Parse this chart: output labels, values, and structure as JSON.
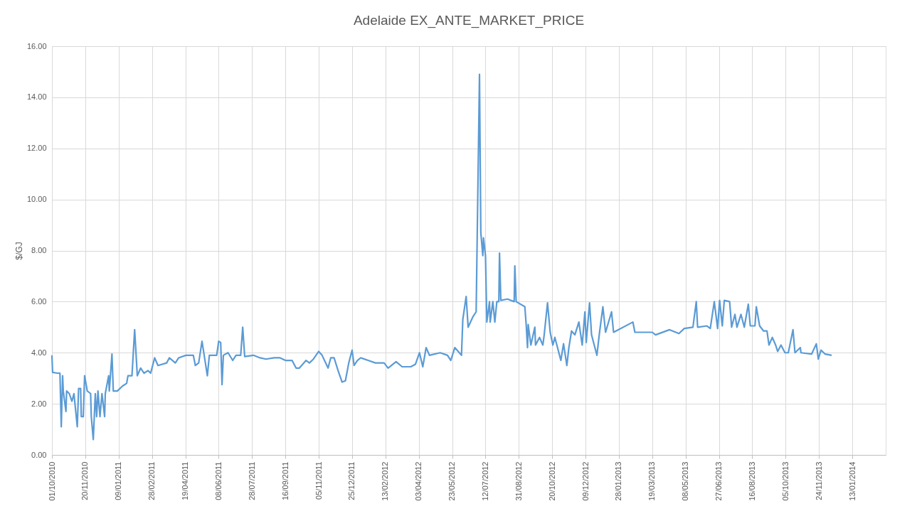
{
  "chart_data": {
    "type": "line",
    "title": "Adelaide EX_ANTE_MARKET_PRICE",
    "ylabel": "$/GJ",
    "x": [
      "2010-10-01",
      "2010-10-02",
      "2010-10-09",
      "2010-10-13",
      "2010-10-15",
      "2010-10-17",
      "2010-10-18",
      "2010-10-22",
      "2010-10-23",
      "2010-10-27",
      "2010-10-31",
      "2010-11-03",
      "2010-11-08",
      "2010-11-10",
      "2010-11-13",
      "2010-11-14",
      "2010-11-17",
      "2010-11-19",
      "2010-11-23",
      "2010-11-28",
      "2010-11-29",
      "2010-12-02",
      "2010-12-05",
      "2010-12-07",
      "2010-12-09",
      "2010-12-12",
      "2010-12-15",
      "2010-12-19",
      "2010-12-20",
      "2010-12-25",
      "2010-12-26",
      "2010-12-30",
      "2011-01-01",
      "2011-01-07",
      "2011-01-15",
      "2011-01-21",
      "2011-01-23",
      "2011-01-29",
      "2011-02-02",
      "2011-02-06",
      "2011-02-11",
      "2011-02-16",
      "2011-02-22",
      "2011-02-26",
      "2011-03-04",
      "2011-03-09",
      "2011-03-22",
      "2011-03-26",
      "2011-04-04",
      "2011-04-09",
      "2011-04-20",
      "2011-05-01",
      "2011-05-04",
      "2011-05-09",
      "2011-05-14",
      "2011-05-22",
      "2011-05-25",
      "2011-06-05",
      "2011-06-08",
      "2011-06-11",
      "2011-06-13",
      "2011-06-15",
      "2011-06-22",
      "2011-06-29",
      "2011-07-04",
      "2011-07-11",
      "2011-07-14",
      "2011-07-17",
      "2011-07-30",
      "2011-08-09",
      "2011-08-18",
      "2011-08-30",
      "2011-09-08",
      "2011-09-16",
      "2011-09-26",
      "2011-10-02",
      "2011-10-07",
      "2011-10-17",
      "2011-10-22",
      "2011-10-28",
      "2011-11-05",
      "2011-11-10",
      "2011-11-19",
      "2011-11-23",
      "2011-11-28",
      "2011-12-04",
      "2011-12-10",
      "2011-12-15",
      "2011-12-20",
      "2011-12-25",
      "2011-12-28",
      "2012-01-02",
      "2012-01-07",
      "2012-01-18",
      "2012-01-29",
      "2012-02-11",
      "2012-02-17",
      "2012-02-29",
      "2012-03-09",
      "2012-03-22",
      "2012-03-29",
      "2012-04-04",
      "2012-04-09",
      "2012-04-14",
      "2012-04-19",
      "2012-05-05",
      "2012-05-16",
      "2012-05-21",
      "2012-05-27",
      "2012-06-06",
      "2012-06-08",
      "2012-06-13",
      "2012-06-16",
      "2012-06-23",
      "2012-06-28",
      "2012-07-03",
      "2012-07-05",
      "2012-07-08",
      "2012-07-09",
      "2012-07-12",
      "2012-07-14",
      "2012-07-18",
      "2012-07-19",
      "2012-07-23",
      "2012-07-26",
      "2012-07-29",
      "2012-08-01",
      "2012-08-02",
      "2012-08-04",
      "2012-08-14",
      "2012-08-24",
      "2012-08-25",
      "2012-08-27",
      "2012-09-09",
      "2012-09-11",
      "2012-09-13",
      "2012-09-14",
      "2012-09-18",
      "2012-09-24",
      "2012-09-25",
      "2012-10-01",
      "2012-10-06",
      "2012-10-08",
      "2012-10-13",
      "2012-10-17",
      "2012-10-21",
      "2012-10-24",
      "2012-10-30",
      "2012-11-02",
      "2012-11-06",
      "2012-11-11",
      "2012-11-14",
      "2012-11-18",
      "2012-11-23",
      "2012-11-29",
      "2012-12-04",
      "2012-12-08",
      "2012-12-10",
      "2012-12-15",
      "2012-12-18",
      "2012-12-26",
      "2012-12-30",
      "2013-01-04",
      "2013-01-08",
      "2013-01-17",
      "2013-01-20",
      "2013-02-18",
      "2013-02-21",
      "2013-03-19",
      "2013-03-24",
      "2013-04-14",
      "2013-04-28",
      "2013-05-06",
      "2013-05-19",
      "2013-05-24",
      "2013-05-26",
      "2013-06-09",
      "2013-06-14",
      "2013-06-20",
      "2013-06-25",
      "2013-06-28",
      "2013-07-02",
      "2013-07-05",
      "2013-07-13",
      "2013-07-16",
      "2013-07-21",
      "2013-07-24",
      "2013-07-30",
      "2013-08-04",
      "2013-08-10",
      "2013-08-13",
      "2013-08-20",
      "2013-08-22",
      "2013-08-27",
      "2013-09-02",
      "2013-09-07",
      "2013-09-10",
      "2013-09-15",
      "2013-09-20",
      "2013-09-23",
      "2013-09-28",
      "2013-10-04",
      "2013-10-09",
      "2013-10-16",
      "2013-10-19",
      "2013-10-27",
      "2013-10-28",
      "2013-11-13",
      "2013-11-20",
      "2013-11-23",
      "2013-11-27",
      "2013-12-03",
      "2013-12-13"
    ],
    "series": [
      {
        "color": "#5b9bd5",
        "values": [
          3.9,
          3.23,
          3.2,
          3.2,
          1.1,
          3.1,
          2.5,
          1.7,
          2.5,
          2.4,
          2.1,
          2.4,
          1.1,
          2.6,
          2.6,
          1.5,
          1.5,
          3.1,
          2.5,
          2.4,
          1.5,
          0.6,
          2.4,
          1.5,
          2.5,
          1.5,
          2.4,
          1.5,
          2.4,
          3.1,
          2.5,
          3.95,
          2.5,
          2.5,
          2.7,
          2.8,
          3.1,
          3.1,
          4.9,
          3.1,
          3.4,
          3.2,
          3.3,
          3.2,
          3.8,
          3.5,
          3.6,
          3.8,
          3.6,
          3.8,
          3.9,
          3.9,
          3.5,
          3.6,
          4.45,
          3.1,
          3.9,
          3.9,
          4.45,
          4.4,
          2.75,
          3.9,
          4.0,
          3.7,
          3.9,
          3.9,
          5.0,
          3.85,
          3.9,
          3.8,
          3.75,
          3.8,
          3.8,
          3.7,
          3.7,
          3.4,
          3.4,
          3.7,
          3.6,
          3.75,
          4.05,
          3.9,
          3.4,
          3.8,
          3.8,
          3.3,
          2.85,
          2.9,
          3.6,
          4.1,
          3.5,
          3.7,
          3.8,
          3.7,
          3.6,
          3.6,
          3.4,
          3.65,
          3.45,
          3.45,
          3.55,
          4.0,
          3.45,
          4.2,
          3.9,
          4.0,
          3.9,
          3.7,
          4.2,
          3.9,
          5.3,
          6.2,
          5.0,
          5.4,
          5.6,
          14.9,
          8.7,
          7.8,
          8.5,
          7.8,
          5.2,
          6.0,
          5.2,
          6.0,
          5.2,
          6.0,
          6.0,
          7.9,
          6.05,
          6.1,
          6.0,
          7.4,
          6.0,
          5.8,
          5.1,
          4.2,
          5.1,
          4.3,
          5.0,
          4.3,
          4.6,
          4.3,
          4.7,
          5.95,
          4.8,
          4.3,
          4.6,
          4.0,
          3.7,
          4.35,
          3.5,
          4.2,
          4.85,
          4.7,
          5.2,
          4.3,
          5.6,
          4.4,
          5.95,
          4.7,
          3.9,
          4.8,
          5.8,
          4.8,
          5.6,
          4.8,
          5.2,
          4.8,
          4.8,
          4.7,
          4.9,
          4.75,
          4.95,
          5.0,
          6.0,
          5.0,
          5.05,
          4.95,
          6.0,
          4.95,
          6.05,
          5.05,
          6.05,
          6.0,
          5.0,
          5.5,
          5.0,
          5.5,
          5.0,
          5.9,
          5.05,
          5.05,
          5.8,
          5.05,
          4.85,
          4.85,
          4.3,
          4.6,
          4.3,
          4.05,
          4.3,
          4.0,
          4.0,
          4.9,
          4.0,
          4.2,
          4.0,
          3.95,
          4.35,
          3.75,
          4.1,
          3.95,
          3.9
        ]
      }
    ],
    "xlim": [
      "2010-10-01",
      "2014-03-04"
    ],
    "xticks": [
      {
        "value": "2010-10-01",
        "label": "01/10/2010"
      },
      {
        "value": "2010-11-20",
        "label": "20/11/2010"
      },
      {
        "value": "2011-01-09",
        "label": "09/01/2011"
      },
      {
        "value": "2011-02-28",
        "label": "28/02/2011"
      },
      {
        "value": "2011-04-19",
        "label": "19/04/2011"
      },
      {
        "value": "2011-06-08",
        "label": "08/06/2011"
      },
      {
        "value": "2011-07-28",
        "label": "28/07/2011"
      },
      {
        "value": "2011-09-16",
        "label": "16/09/2011"
      },
      {
        "value": "2011-11-05",
        "label": "05/11/2011"
      },
      {
        "value": "2011-12-25",
        "label": "25/12/2011"
      },
      {
        "value": "2012-02-13",
        "label": "13/02/2012"
      },
      {
        "value": "2012-04-03",
        "label": "03/04/2012"
      },
      {
        "value": "2012-05-23",
        "label": "23/05/2012"
      },
      {
        "value": "2012-07-12",
        "label": "12/07/2012"
      },
      {
        "value": "2012-08-31",
        "label": "31/08/2012"
      },
      {
        "value": "2012-10-20",
        "label": "20/10/2012"
      },
      {
        "value": "2012-12-09",
        "label": "09/12/2012"
      },
      {
        "value": "2013-01-28",
        "label": "28/01/2013"
      },
      {
        "value": "2013-03-19",
        "label": "19/03/2013"
      },
      {
        "value": "2013-05-08",
        "label": "08/05/2013"
      },
      {
        "value": "2013-06-27",
        "label": "27/06/2013"
      },
      {
        "value": "2013-08-16",
        "label": "16/08/2013"
      },
      {
        "value": "2013-10-05",
        "label": "05/10/2013"
      },
      {
        "value": "2013-11-24",
        "label": "24/11/2013"
      },
      {
        "value": "2014-01-13",
        "label": "13/01/2014"
      }
    ],
    "ylim": [
      0,
      16
    ],
    "yticks": [
      {
        "value": 0,
        "label": "0.00"
      },
      {
        "value": 2,
        "label": "2.00"
      },
      {
        "value": 4,
        "label": "4.00"
      },
      {
        "value": 6,
        "label": "6.00"
      },
      {
        "value": 8,
        "label": "8.00"
      },
      {
        "value": 10,
        "label": "10.00"
      },
      {
        "value": 12,
        "label": "12.00"
      },
      {
        "value": 14,
        "label": "14.00"
      },
      {
        "value": 16,
        "label": "16.00"
      }
    ],
    "grid": true,
    "marker": "none",
    "line_style": "solid"
  }
}
